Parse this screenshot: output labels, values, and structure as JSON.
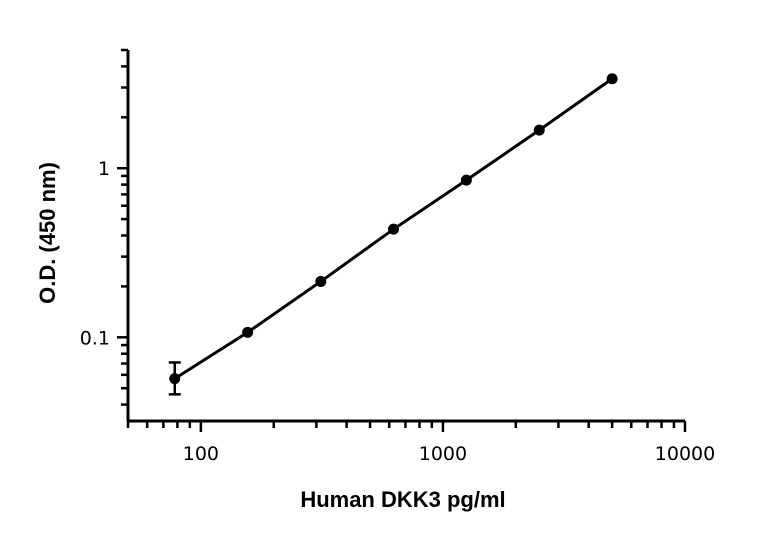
{
  "chart_data": {
    "type": "line",
    "title": "",
    "xlabel": "Human DKK3 pg/ml",
    "ylabel": "O.D. (450 nm)",
    "x_scale": "log",
    "y_scale": "log",
    "xlim": [
      50,
      10000
    ],
    "ylim": [
      0.032,
      5
    ],
    "x_tick_labels": [
      {
        "value": 100,
        "label": "100"
      },
      {
        "value": 1000,
        "label": "1000"
      },
      {
        "value": 10000,
        "label": "10000"
      }
    ],
    "y_tick_labels": [
      {
        "value": 0.1,
        "label": "0.1"
      },
      {
        "value": 1,
        "label": "1"
      }
    ],
    "grid": false,
    "legend": "none",
    "color": "#000000",
    "series": [
      {
        "points": [
          {
            "x": 78,
            "y": 0.057,
            "err_low": 0.046,
            "err_high": 0.071
          },
          {
            "x": 156,
            "y": 0.107
          },
          {
            "x": 313,
            "y": 0.214
          },
          {
            "x": 625,
            "y": 0.436
          },
          {
            "x": 1250,
            "y": 0.85
          },
          {
            "x": 2500,
            "y": 1.68
          },
          {
            "x": 5000,
            "y": 3.38
          }
        ]
      }
    ]
  }
}
